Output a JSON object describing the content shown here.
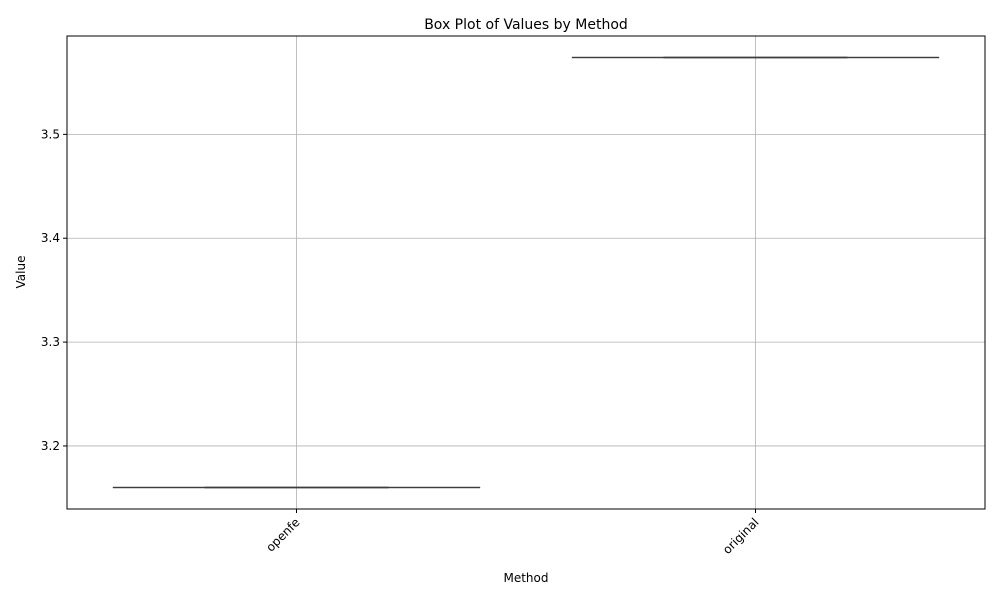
{
  "chart_data": {
    "type": "box",
    "title": "Box Plot of Values by Method",
    "xlabel": "Method",
    "ylabel": "Value",
    "categories": [
      "openfe",
      "original"
    ],
    "boxes": [
      {
        "category": "openfe",
        "min": 3.16,
        "q1": 3.16,
        "median": 3.16,
        "q3": 3.16,
        "max": 3.16
      },
      {
        "category": "original",
        "min": 3.574,
        "q1": 3.574,
        "median": 3.574,
        "q3": 3.574,
        "max": 3.574
      }
    ],
    "ylim": [
      3.1393,
      3.5947
    ],
    "yticks": [
      3.2,
      3.3,
      3.4,
      3.5
    ],
    "ytick_labels": [
      "3.2",
      "3.3",
      "3.4",
      "3.5"
    ],
    "grid": true,
    "xtick_rotation_deg": 45,
    "colors": {
      "grid": "#b0b0b0",
      "box_line": "#3d3d3d",
      "axes": "#000000"
    }
  }
}
